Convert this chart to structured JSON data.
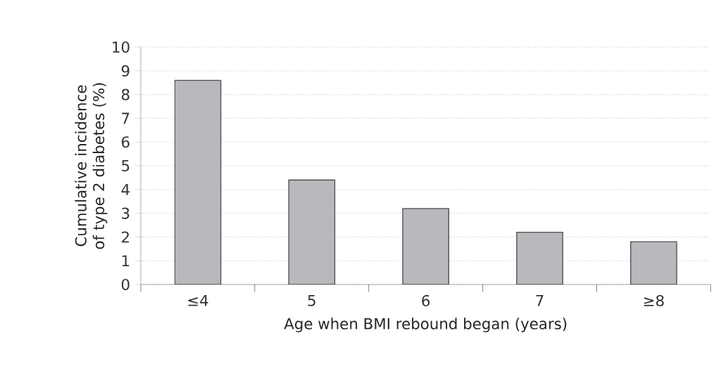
{
  "chart_data": {
    "type": "bar",
    "xlabel": "Age when BMI rebound began (years)",
    "ylabel": "Cumulative incidence of type 2 diabetes (%)",
    "categories": [
      "≤4",
      "5",
      "6",
      "7",
      "≥8"
    ],
    "values": [
      8.6,
      4.4,
      3.2,
      2.2,
      1.8
    ],
    "color": "#b9b9bd",
    "ylim": [
      0,
      10
    ],
    "yticks": [
      0,
      1,
      2,
      3,
      4,
      5,
      6,
      7,
      8,
      9,
      10
    ],
    "grid": "y"
  }
}
